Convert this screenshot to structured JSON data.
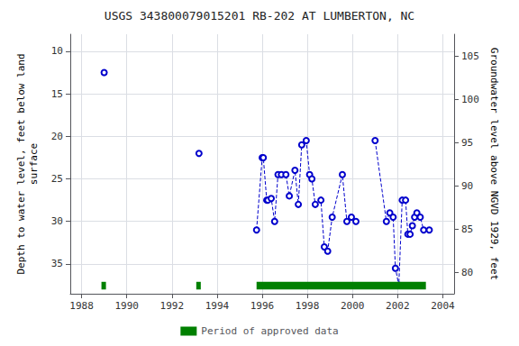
{
  "chart_data": {
    "type": "line",
    "title": "USGS 343800079015201 RB-202 AT LUMBERTON, NC",
    "ylabel": "Depth to water level, feet below land\nsurface",
    "y2label": "Groundwater level above NGVD 1929, feet",
    "xlim": [
      1987.5,
      2004.5
    ],
    "xticks": [
      1988,
      1990,
      1992,
      1994,
      1996,
      1998,
      2000,
      2002,
      2004
    ],
    "ylim": [
      38.5,
      8.0
    ],
    "yticks": [
      10,
      15,
      20,
      25,
      30,
      35
    ],
    "y2lim": [
      77.5,
      107.5
    ],
    "y2ticks": [
      80,
      85,
      90,
      95,
      100,
      105
    ],
    "grid": true,
    "legend": "bottom",
    "series": [
      {
        "type": "line",
        "color": "#0000cc",
        "marker": "open_circle",
        "line_style": "dashed",
        "x": [
          1989.0
        ],
        "values": [
          12.5
        ]
      },
      {
        "type": "line",
        "color": "#0000cc",
        "marker": "open_circle",
        "line_style": "dashed",
        "x": [
          1993.2
        ],
        "values": [
          22.0
        ]
      },
      {
        "type": "line",
        "color": "#0000cc",
        "marker": "open_circle",
        "line_style": "dashed",
        "x": [
          1995.75,
          1996.0,
          1996.05,
          1996.2,
          1996.25,
          1996.4,
          1996.55,
          1996.7,
          1996.85,
          1997.05,
          1997.2,
          1997.45,
          1997.6,
          1997.75,
          1997.95,
          1998.1,
          1998.2,
          1998.35,
          1998.6,
          1998.75,
          1998.9,
          1999.1,
          1999.55,
          1999.75,
          1999.95,
          2000.15
        ],
        "values": [
          31.0,
          22.5,
          22.5,
          27.5,
          27.5,
          27.3,
          30.0,
          24.5,
          24.5,
          24.5,
          27.0,
          24.0,
          28.0,
          21.0,
          20.5,
          24.5,
          25.0,
          28.0,
          27.5,
          33.0,
          33.5,
          29.5,
          24.5,
          30.0,
          29.5,
          30.0
        ]
      },
      {
        "type": "line",
        "color": "#0000cc",
        "marker": "open_circle",
        "line_style": "dashed",
        "x": [
          2001.0,
          2001.5,
          2001.65,
          2001.8,
          2001.9,
          2002.05,
          2002.2,
          2002.35,
          2002.45,
          2002.55,
          2002.65,
          2002.75,
          2002.85,
          2003.0,
          2003.15,
          2003.4
        ],
        "values": [
          20.5,
          30.0,
          29.0,
          29.5,
          35.5,
          37.5,
          27.5,
          27.5,
          31.5,
          31.5,
          30.5,
          29.5,
          29.0,
          29.5,
          31.0,
          31.0
        ]
      },
      {
        "type": "period_bar",
        "name": "Period of approved data",
        "color": "#008000",
        "periods": [
          [
            1988.88,
            1989.08
          ],
          [
            1993.08,
            1993.28
          ],
          [
            1995.75,
            2003.25
          ]
        ],
        "bar_depth": 38.0,
        "bar_height": 0.9
      }
    ]
  }
}
